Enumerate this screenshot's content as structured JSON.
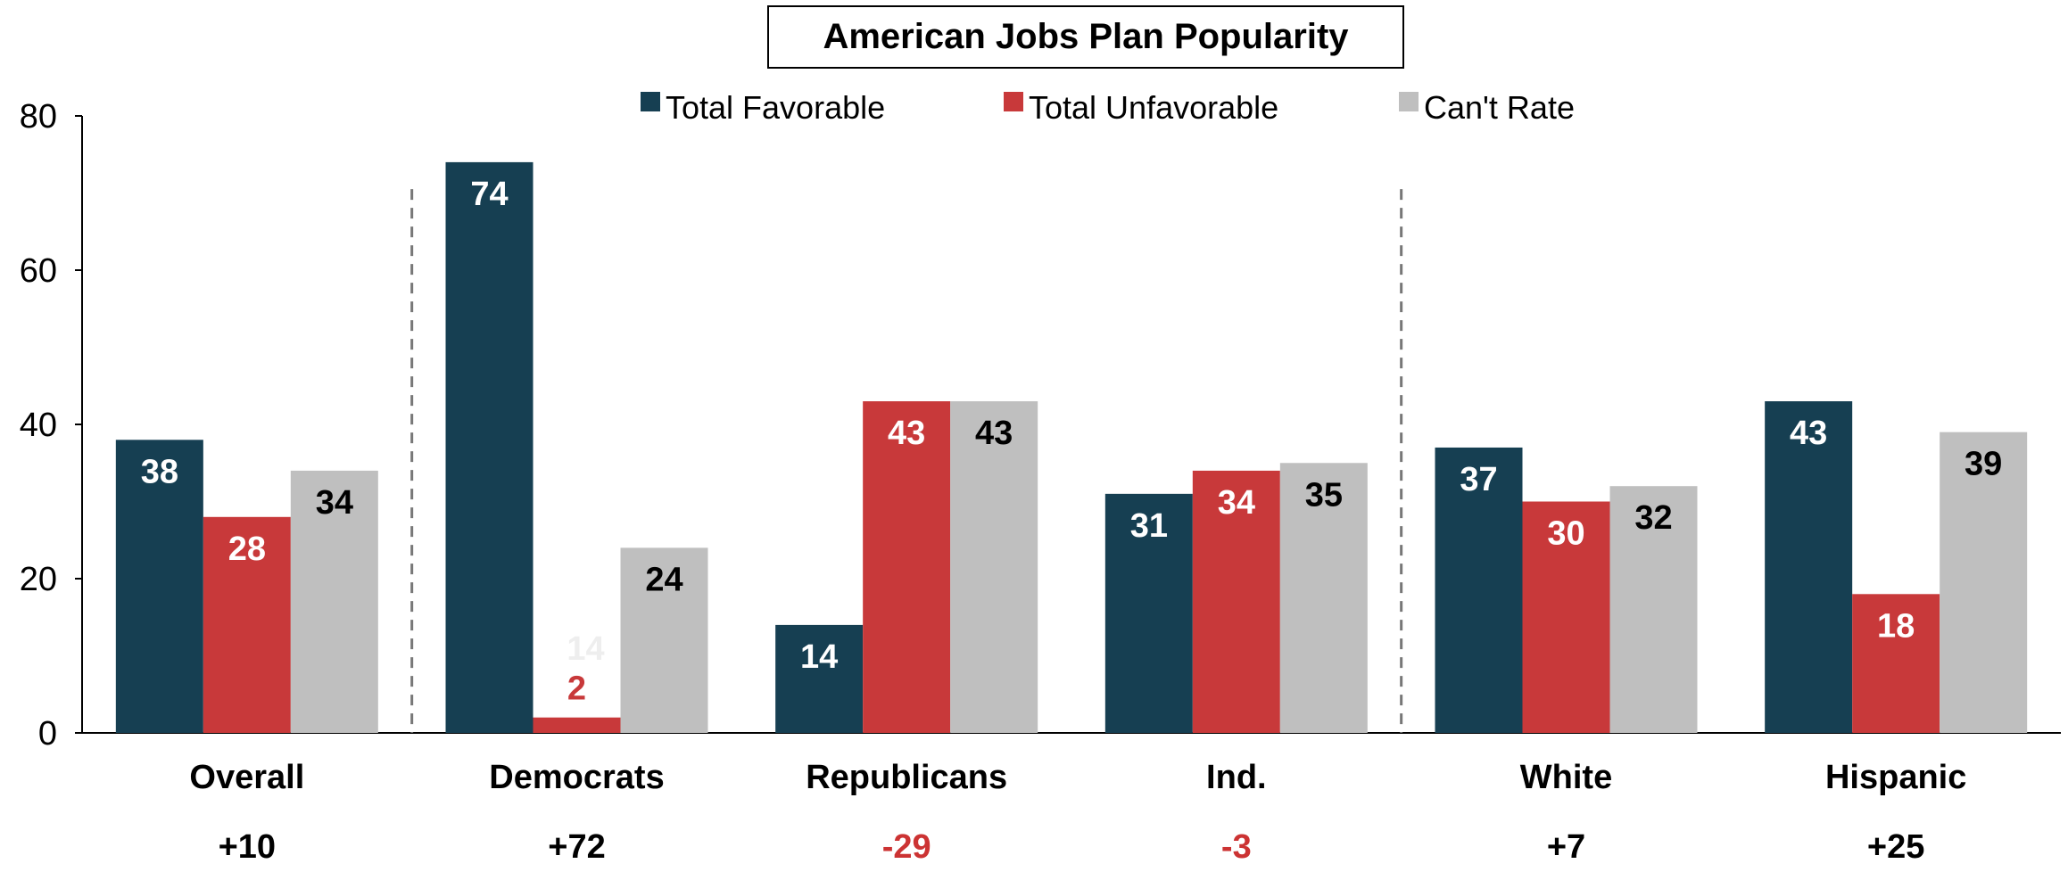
{
  "chart_data": {
    "type": "bar",
    "title": "American Jobs Plan Popularity",
    "categories": [
      "Overall",
      "Democrats",
      "Republicans",
      "Ind.",
      "White",
      "Hispanic"
    ],
    "net": [
      "+10",
      "+72",
      "-29",
      "-3",
      "+7",
      "+25"
    ],
    "net_colors": [
      "#000000",
      "#000000",
      "#cc3333",
      "#cc3333",
      "#000000",
      "#000000"
    ],
    "series": [
      {
        "name": "Total Favorable",
        "color": "#163f52",
        "label_color": "#ffffff",
        "values": [
          38,
          74,
          14,
          31,
          37,
          43
        ]
      },
      {
        "name": "Total Unfavorable",
        "color": "#c8393a",
        "label_color": "#ffffff",
        "values": [
          28,
          2,
          43,
          34,
          30,
          18
        ]
      },
      {
        "name": "Can't Rate",
        "color": "#bfbfbf",
        "label_color": "#000000",
        "values": [
          34,
          24,
          43,
          35,
          32,
          39
        ]
      }
    ],
    "special_label_colors": {
      "1-1": "#c8393a"
    },
    "stray_label": "14",
    "ylim": [
      0,
      80
    ],
    "yticks": [
      0,
      20,
      40,
      60,
      80
    ],
    "legend": "top-center",
    "grid": false,
    "separators_after_category": [
      0,
      3
    ]
  }
}
